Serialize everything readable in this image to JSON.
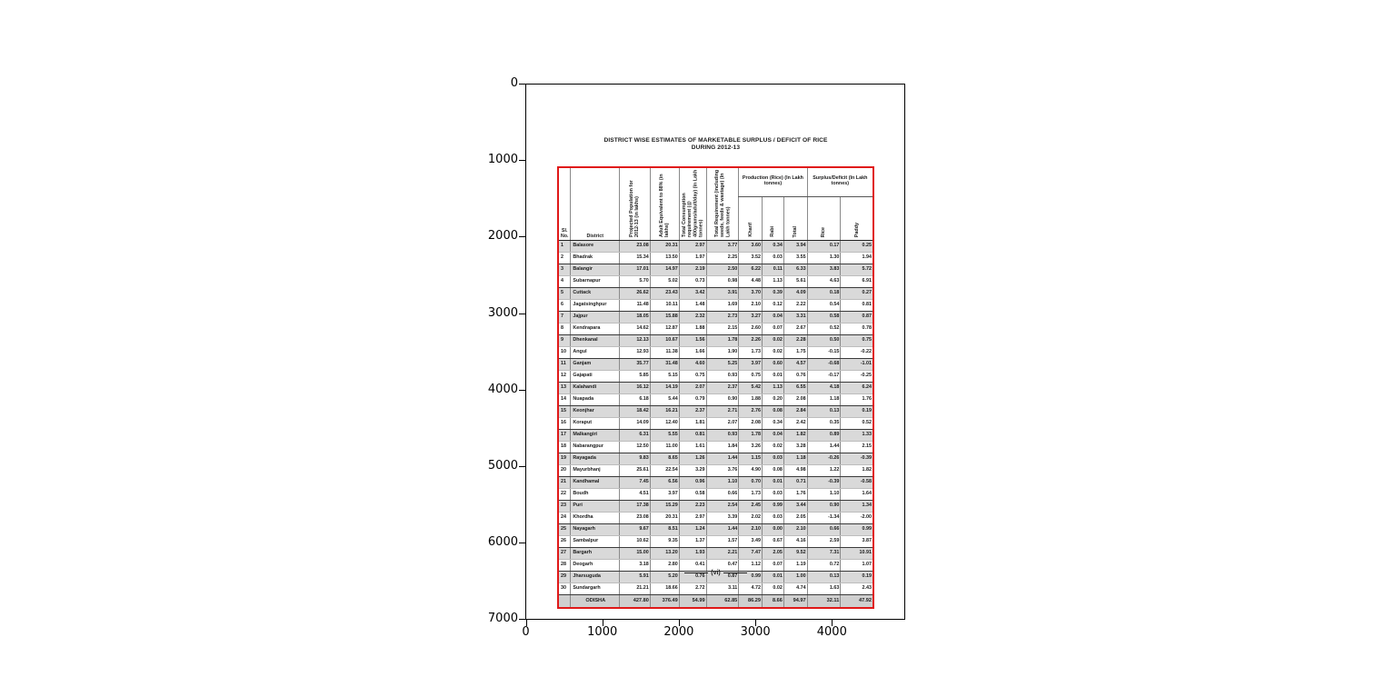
{
  "figure": {
    "title_line1": "DISTRICT WISE ESTIMATES OF MARKETABLE SURPLUS / DEFICIT OF RICE",
    "title_line2": "DURING 2012-13",
    "page_marker": "(vi)"
  },
  "axes": {
    "x_ticks": [
      0,
      1000,
      2000,
      3000,
      4000
    ],
    "y_ticks": [
      0,
      1000,
      2000,
      3000,
      4000,
      5000,
      6000,
      7000
    ]
  },
  "chart_data": {
    "type": "table",
    "title": "DISTRICT WISE ESTIMATES OF MARKETABLE SURPLUS / DEFICIT OF RICE DURING 2012-13",
    "header": {
      "sl": "Sl.\nNo.",
      "district": "District",
      "population": "Projected Population for 2012-13 (in lakhs)",
      "adult": "Adult Equivalent to 88% (in lakhs)",
      "consumption": "Total Consumption requirement (@ 400grams/adult/day) (In Lakh tonnes)",
      "requirement": "Total Requirement (including seeds, feeds & wastage) (In Lakh tonnes)",
      "production_group": "Production (Rice) (In Lakh tonnes)",
      "surplus_group": "Surplus/Deficit (In Lakh tonnes)",
      "kharif": "Kharif",
      "rabi": "Rabi",
      "total": "Total",
      "rice": "Rice",
      "paddy": "Paddy"
    },
    "rows": [
      [
        "1",
        "Balasore",
        "23.08",
        "20.31",
        "2.97",
        "3.77",
        "3.60",
        "0.34",
        "3.94",
        "0.17",
        "0.25"
      ],
      [
        "2",
        "Bhadrak",
        "15.34",
        "13.50",
        "1.97",
        "2.25",
        "3.52",
        "0.03",
        "3.55",
        "1.30",
        "1.94"
      ],
      [
        "3",
        "Balangir",
        "17.01",
        "14.97",
        "2.19",
        "2.50",
        "6.22",
        "0.11",
        "6.33",
        "3.83",
        "5.72"
      ],
      [
        "4",
        "Subarnapur",
        "5.70",
        "5.02",
        "0.73",
        "0.98",
        "4.48",
        "1.13",
        "5.61",
        "4.63",
        "6.91"
      ],
      [
        "5",
        "Cuttack",
        "26.62",
        "23.43",
        "3.42",
        "3.91",
        "3.70",
        "0.39",
        "4.09",
        "0.18",
        "0.27"
      ],
      [
        "6",
        "Jagatsinghpur",
        "11.48",
        "10.11",
        "1.48",
        "1.69",
        "2.10",
        "0.12",
        "2.22",
        "0.54",
        "0.81"
      ],
      [
        "7",
        "Jajpur",
        "18.05",
        "15.88",
        "2.32",
        "2.73",
        "3.27",
        "0.04",
        "3.31",
        "0.58",
        "0.87"
      ],
      [
        "8",
        "Kendrapara",
        "14.62",
        "12.87",
        "1.88",
        "2.15",
        "2.60",
        "0.07",
        "2.67",
        "0.52",
        "0.78"
      ],
      [
        "9",
        "Dhenkanal",
        "12.13",
        "10.67",
        "1.56",
        "1.78",
        "2.26",
        "0.02",
        "2.28",
        "0.50",
        "0.75"
      ],
      [
        "10",
        "Angul",
        "12.93",
        "11.38",
        "1.66",
        "1.90",
        "1.73",
        "0.02",
        "1.75",
        "-0.15",
        "-0.22"
      ],
      [
        "11",
        "Ganjam",
        "35.77",
        "31.48",
        "4.60",
        "5.25",
        "3.97",
        "0.60",
        "4.57",
        "-0.68",
        "-1.01"
      ],
      [
        "12",
        "Gajapati",
        "5.85",
        "5.15",
        "0.75",
        "0.93",
        "0.75",
        "0.01",
        "0.76",
        "-0.17",
        "-0.25"
      ],
      [
        "13",
        "Kalahandi",
        "16.12",
        "14.19",
        "2.07",
        "2.37",
        "5.42",
        "1.13",
        "6.55",
        "4.18",
        "6.24"
      ],
      [
        "14",
        "Nuapada",
        "6.18",
        "5.44",
        "0.79",
        "0.90",
        "1.88",
        "0.20",
        "2.08",
        "1.18",
        "1.76"
      ],
      [
        "15",
        "Keonjhar",
        "18.42",
        "16.21",
        "2.37",
        "2.71",
        "2.76",
        "0.08",
        "2.84",
        "0.13",
        "0.19"
      ],
      [
        "16",
        "Koraput",
        "14.09",
        "12.40",
        "1.81",
        "2.07",
        "2.08",
        "0.34",
        "2.42",
        "0.35",
        "0.52"
      ],
      [
        "17",
        "Malkangiri",
        "6.31",
        "5.55",
        "0.81",
        "0.93",
        "1.78",
        "0.04",
        "1.82",
        "0.89",
        "1.33"
      ],
      [
        "18",
        "Nabarangpur",
        "12.50",
        "11.00",
        "1.61",
        "1.84",
        "3.26",
        "0.02",
        "3.28",
        "1.44",
        "2.15"
      ],
      [
        "19",
        "Rayagada",
        "9.83",
        "8.65",
        "1.26",
        "1.44",
        "1.15",
        "0.03",
        "1.18",
        "-0.26",
        "-0.39"
      ],
      [
        "20",
        "Mayurbhanj",
        "25.61",
        "22.54",
        "3.29",
        "3.76",
        "4.90",
        "0.08",
        "4.98",
        "1.22",
        "1.82"
      ],
      [
        "21",
        "Kandhamal",
        "7.45",
        "6.56",
        "0.96",
        "1.10",
        "0.70",
        "0.01",
        "0.71",
        "-0.39",
        "-0.58"
      ],
      [
        "22",
        "Boudh",
        "4.51",
        "3.97",
        "0.58",
        "0.66",
        "1.73",
        "0.03",
        "1.76",
        "1.10",
        "1.64"
      ],
      [
        "23",
        "Puri",
        "17.38",
        "15.29",
        "2.23",
        "2.54",
        "2.45",
        "0.99",
        "3.44",
        "0.90",
        "1.34"
      ],
      [
        "24",
        "Khordha",
        "23.08",
        "20.31",
        "2.97",
        "3.39",
        "2.02",
        "0.03",
        "2.05",
        "-1.34",
        "-2.00"
      ],
      [
        "25",
        "Nayagarh",
        "9.67",
        "8.51",
        "1.24",
        "1.44",
        "2.10",
        "0.00",
        "2.10",
        "0.66",
        "0.99"
      ],
      [
        "26",
        "Sambalpur",
        "10.62",
        "9.35",
        "1.37",
        "1.57",
        "3.49",
        "0.67",
        "4.16",
        "2.59",
        "3.87"
      ],
      [
        "27",
        "Bargarh",
        "15.00",
        "13.20",
        "1.93",
        "2.21",
        "7.47",
        "2.05",
        "9.52",
        "7.31",
        "10.91"
      ],
      [
        "28",
        "Deogarh",
        "3.18",
        "2.80",
        "0.41",
        "0.47",
        "1.12",
        "0.07",
        "1.19",
        "0.72",
        "1.07"
      ],
      [
        "29",
        "Jharsuguda",
        "5.91",
        "5.20",
        "0.76",
        "0.87",
        "0.99",
        "0.01",
        "1.00",
        "0.13",
        "0.19"
      ],
      [
        "30",
        "Sundargarh",
        "21.21",
        "18.66",
        "2.72",
        "3.11",
        "4.72",
        "0.02",
        "4.74",
        "1.63",
        "2.43"
      ]
    ],
    "total_row": [
      "",
      "ODISHA",
      "427.80",
      "376.49",
      "54.99",
      "62.85",
      "86.29",
      "8.66",
      "94.97",
      "32.11",
      "47.92"
    ]
  }
}
